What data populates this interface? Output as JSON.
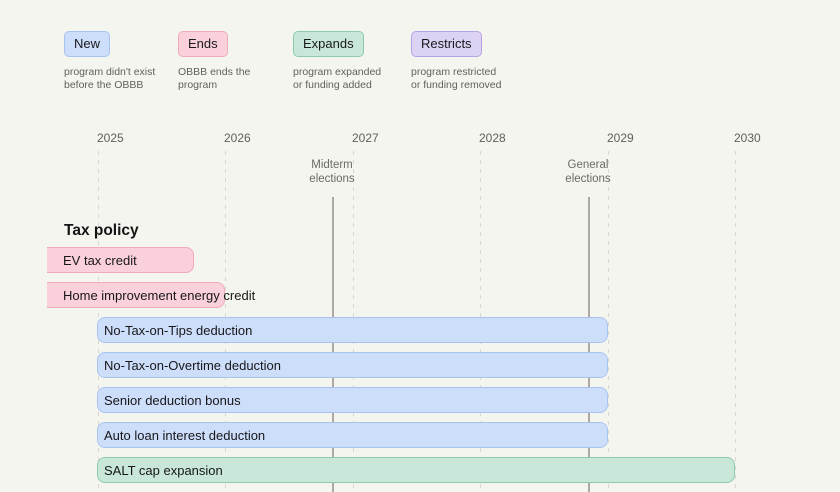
{
  "legend": {
    "items": [
      {
        "label": "New",
        "status": "new",
        "description": "program didn't exist before the OBBB"
      },
      {
        "label": "Ends",
        "status": "ends",
        "description": "OBBB ends the program"
      },
      {
        "label": "Expands",
        "status": "expands",
        "description": "program expanded or funding added"
      },
      {
        "label": "Restricts",
        "status": "restricts",
        "description": "program restricted or funding removed"
      }
    ]
  },
  "colors": {
    "background": "#f5f5ef",
    "gridline": "#d8d8d0",
    "event_line": "#aaaaa2",
    "new": {
      "bg": "#cddefa",
      "border": "#a9c3f0"
    },
    "ends": {
      "bg": "#fad0db",
      "border": "#f0aabd"
    },
    "expands": {
      "bg": "#c9e7d8",
      "border": "#8ccab0"
    },
    "restricts": {
      "bg": "#dcd2f4",
      "border": "#b7a4e6"
    }
  },
  "chart_data": {
    "type": "gantt",
    "section_title": "Tax policy",
    "x_ticks": [
      "2025",
      "2026",
      "2027",
      "2028",
      "2029",
      "2030"
    ],
    "x_tick_years": [
      2025,
      2026,
      2027,
      2028,
      2029,
      2030
    ],
    "x_range": [
      2025,
      2030.8
    ],
    "events": [
      {
        "label": "Midterm elections",
        "year": 2026.84
      },
      {
        "label": "General elections",
        "year": 2028.85
      }
    ],
    "bars": [
      {
        "label": "EV tax credit",
        "status": "ends",
        "start": null,
        "end": 2025.75,
        "starts_before_axis": true
      },
      {
        "label": "Home improvement energy credit",
        "status": "ends",
        "start": null,
        "end": 2026.0,
        "starts_before_axis": true
      },
      {
        "label": "No-Tax-on-Tips deduction",
        "status": "new",
        "start": 2025,
        "end": 2029.0,
        "starts_before_axis": false
      },
      {
        "label": "No-Tax-on-Overtime deduction",
        "status": "new",
        "start": 2025,
        "end": 2029.0,
        "starts_before_axis": false
      },
      {
        "label": "Senior deduction bonus",
        "status": "new",
        "start": 2025,
        "end": 2029.0,
        "starts_before_axis": false
      },
      {
        "label": "Auto loan interest deduction",
        "status": "new",
        "start": 2025,
        "end": 2029.0,
        "starts_before_axis": false
      },
      {
        "label": "SALT cap expansion",
        "status": "expands",
        "start": 2025,
        "end": 2030.0,
        "starts_before_axis": false
      }
    ]
  }
}
